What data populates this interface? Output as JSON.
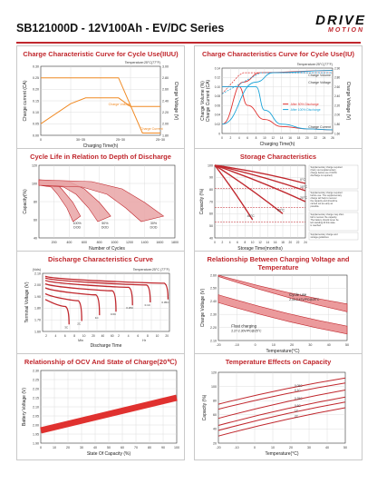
{
  "header": {
    "title": "SB121000D - 12V100Ah - EV/DC Series",
    "brand_line1": "DRIVE",
    "brand_line2": "MOTION",
    "accent_color": "#c0272d"
  },
  "chart_data": [
    {
      "id": "iiuu",
      "type": "line",
      "title": "Charge Characteristic Curve for Cycle Use(IIUU)",
      "subtitle": "Temperature:25°C(77°F)",
      "xlabel": "Charging Time(h)",
      "ylabel_left": "Charge current (CA)",
      "ylabel_right": "Charge Voltage (V)",
      "x_ticks": [
        "0",
        "30~35",
        "25~30",
        "25~30"
      ],
      "left_ticks": [
        "0.00",
        "0.05",
        "0.10",
        "0.15",
        "0.20",
        "0.25",
        "0.30"
      ],
      "right_ticks": [
        "1.80",
        "2.00",
        "2.20",
        "2.40",
        "2.60",
        "2.80",
        "3.00"
      ],
      "series": [
        {
          "name": "Charge Voltage",
          "color": "#f08a24",
          "x": [
            0,
            1,
            1.5,
            2.6,
            3,
            4
          ],
          "values": [
            2.0,
            2.35,
            2.45,
            2.45,
            2.3,
            2.3
          ]
        },
        {
          "name": "Charge Current",
          "color": "#f08a24",
          "x": [
            0,
            1.5,
            2.6,
            3.4,
            4
          ],
          "values": [
            0.25,
            0.25,
            0.25,
            0.01,
            0.01
          ]
        }
      ]
    },
    {
      "id": "iu",
      "type": "line",
      "title": "Charge Characteristics Curve for Cycle Use(IU)",
      "subtitle": "Temperature:25°C(77°F)",
      "xlabel": "Charging Time(h)",
      "ylabel_left": "Charge Current (CA)",
      "ylabel_right": "Charge Voltage (V)",
      "ylabel_left2": "Charge Volume (%)",
      "x_ticks": [
        "0",
        "2",
        "4",
        "6",
        "8",
        "10",
        "12",
        "14",
        "16",
        "18",
        "20",
        "22",
        "24",
        "26"
      ],
      "left_ticks": [
        "0",
        "0.02",
        "0.04",
        "0.06",
        "0.08",
        "0.10",
        "0.12",
        "0.14"
      ],
      "right_ticks": [
        "1.60",
        "1.80",
        "2.00",
        "2.20",
        "2.40",
        "2.60",
        "2.80",
        "2.90"
      ],
      "legend": [
        "After 50% Discharge",
        "After 100% Discharge"
      ],
      "annotations": [
        "Charge Volume",
        "Charge Voltage",
        "Charge Current"
      ],
      "series": [
        {
          "name": "After 50% Discharge",
          "color": "#e0312f",
          "x": [
            0,
            2,
            4,
            6,
            10,
            14,
            20,
            26
          ],
          "values": [
            0.1,
            0.1,
            0.1,
            0.06,
            0.03,
            0.015,
            0.01,
            0.008
          ]
        },
        {
          "name": "After 100% Discharge",
          "color": "#1aa3d8",
          "x": [
            0,
            4,
            8,
            10,
            14,
            20,
            26
          ],
          "values": [
            0.1,
            0.1,
            0.1,
            0.05,
            0.02,
            0.01,
            0.008
          ]
        }
      ]
    },
    {
      "id": "cyclelife",
      "type": "line",
      "title": "Cycle Life in Relation to Depth of Discharge",
      "xlabel": "Number of Cycles",
      "ylabel": "Capacity(%)",
      "x_ticks": [
        "200",
        "400",
        "600",
        "800",
        "1000",
        "1200",
        "1400",
        "1600",
        "1800"
      ],
      "y_ticks": [
        "40",
        "60",
        "80",
        "100",
        "120"
      ],
      "series": [
        {
          "name": "100% DOD",
          "x": [
            0,
            200,
            300,
            450,
            550
          ],
          "values": [
            100,
            98,
            90,
            75,
            60
          ]
        },
        {
          "name": "50% DOD",
          "x": [
            0,
            400,
            600,
            800,
            950
          ],
          "values": [
            100,
            98,
            90,
            75,
            60
          ]
        },
        {
          "name": "30% DOD",
          "x": [
            0,
            700,
            1100,
            1400,
            1650
          ],
          "values": [
            100,
            98,
            90,
            75,
            60
          ]
        }
      ],
      "labels": [
        "100% DOD",
        "50% DOD",
        "30% DOD"
      ]
    },
    {
      "id": "storage",
      "type": "line",
      "title": "Storage Characteristics",
      "xlabel": "Storage Time(months)",
      "ylabel": "Capacity (%)",
      "x_ticks": [
        "0",
        "2",
        "4",
        "6",
        "8",
        "10",
        "12",
        "14",
        "16",
        "18",
        "20",
        "22",
        "24"
      ],
      "y_ticks": [
        "40",
        "50",
        "60",
        "70",
        "80",
        "90",
        "100"
      ],
      "series": [
        {
          "name": "0°C",
          "x": [
            0,
            24
          ],
          "values": [
            100,
            85
          ]
        },
        {
          "name": "10°C",
          "x": [
            0,
            24
          ],
          "values": [
            100,
            79
          ]
        },
        {
          "name": "20°C",
          "x": [
            0,
            24
          ],
          "values": [
            100,
            70
          ]
        },
        {
          "name": "30°C",
          "x": [
            0,
            18
          ],
          "values": [
            100,
            60
          ]
        },
        {
          "name": "40°C",
          "x": [
            0,
            10
          ],
          "values": [
            100,
            55
          ]
        }
      ],
      "notes": [
        "Supplementary charge required (Carry out supplementary charge before use if 100% discharge is required)",
        "Supplementary charge required before use. The supplementary charge will help to recover the capacity and should be carried out as early as possible.",
        "Supplementary charge may often fail to recover the capacity. The battery should never be left standing till this state is reached",
        "Supplementary charge and storage guidelines"
      ]
    },
    {
      "id": "discharge",
      "type": "line",
      "title": "Discharge Characteristics Curve",
      "subtitle": "Temperature:25°C (77°F)",
      "xlabel": "Discharge  Time",
      "ylabel": "Terminal  Voltage  (V)",
      "y_unit": "(Vols)",
      "x_ticks_min": [
        "2",
        "4",
        "6",
        "8",
        "10",
        "20",
        "40",
        "60"
      ],
      "x_ticks_h": [
        "2",
        "4",
        "6",
        "8",
        "10",
        "20"
      ],
      "x_unit_min": "Min",
      "x_unit_h": "Hr",
      "y_ticks": [
        "1.60",
        "1.70",
        "1.80",
        "1.90",
        "2.00",
        "2.10"
      ],
      "series_labels": [
        "3C",
        "2C",
        "1C",
        "0.6C",
        "0.25C",
        "0.1C",
        "0.05C"
      ]
    },
    {
      "id": "relvoltage",
      "type": "line",
      "title": "Relationship Between Charging Voltage and Temperature",
      "xlabel": "Temperature(°C)",
      "ylabel": "Charge Voltage (V)",
      "x_ticks": [
        "-20",
        "-10",
        "0",
        "10",
        "20",
        "30",
        "40",
        "50"
      ],
      "y_ticks": [
        "2.10",
        "2.20",
        "2.30",
        "2.40",
        "2.50",
        "2.60"
      ],
      "series": [
        {
          "name": "Cycle use",
          "x": [
            -20,
            50
          ],
          "values": [
            2.62,
            2.35
          ]
        },
        {
          "name": "Float charging",
          "x": [
            -20,
            50
          ],
          "values": [
            2.42,
            2.18
          ]
        }
      ],
      "labels": [
        "Cycle use",
        "2.43-2.47V/PC@25°C",
        "Float charging",
        "2.27-2.30V/PC@25°C"
      ]
    },
    {
      "id": "ocv",
      "type": "line",
      "title": "Relationship of OCV And State of Charge(20℃)",
      "xlabel": "State Of Capacity (%)",
      "ylabel": "Battery Voltage (V)",
      "x_ticks": [
        "0",
        "10",
        "20",
        "30",
        "40",
        "50",
        "60",
        "70",
        "80",
        "90",
        "100"
      ],
      "y_ticks": [
        "1.90",
        "1.95",
        "2.00",
        "2.05",
        "2.10",
        "2.15",
        "2.20",
        "2.25",
        "2.30"
      ],
      "series": [
        {
          "name": "OCV",
          "x": [
            0,
            100
          ],
          "values": [
            1.97,
            2.15
          ]
        }
      ]
    },
    {
      "id": "tempcap",
      "type": "line",
      "title": "Temperature Effects on Capacity",
      "xlabel": "Temperature(°C)",
      "ylabel": "Capacity (%)",
      "x_ticks": [
        "-20",
        "-10",
        "0",
        "10",
        "20",
        "30",
        "40",
        "50"
      ],
      "y_ticks": [
        "20",
        "40",
        "60",
        "80",
        "100",
        "120"
      ],
      "series": [
        {
          "name": "0.05C",
          "x": [
            -20,
            50
          ],
          "values": [
            75,
            112
          ]
        },
        {
          "name": "0.1C",
          "x": [
            -20,
            50
          ],
          "values": [
            68,
            105
          ]
        },
        {
          "name": "0.25C",
          "x": [
            -20,
            50
          ],
          "values": [
            55,
            95
          ]
        },
        {
          "name": "0.6C",
          "x": [
            -20,
            50
          ],
          "values": [
            45,
            85
          ]
        },
        {
          "name": "1C",
          "x": [
            -20,
            50
          ],
          "values": [
            38,
            78
          ]
        },
        {
          "name": "2C",
          "x": [
            -20,
            50
          ],
          "values": [
            30,
            70
          ]
        }
      ]
    }
  ]
}
